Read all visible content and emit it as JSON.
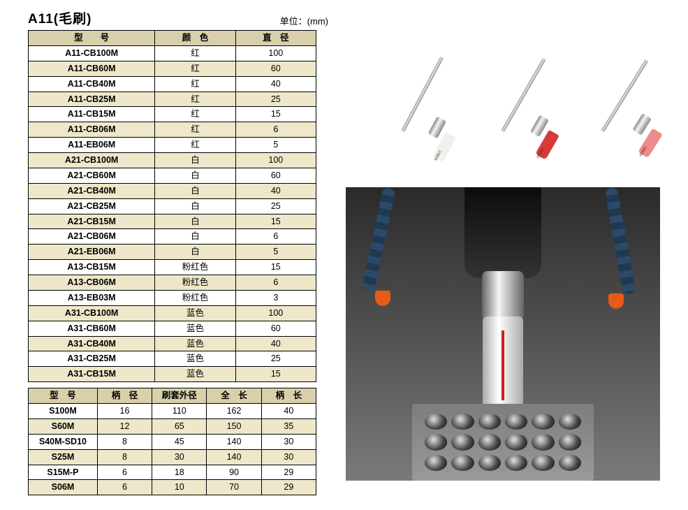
{
  "title": "A11(毛刷)",
  "unit_label": "单位：(mm)",
  "table1": {
    "headers": [
      "型　　号",
      "颜　色",
      "直　径"
    ],
    "col_widths": [
      "44%",
      "28%",
      "28%"
    ],
    "rows": [
      [
        "A11-CB100M",
        "红",
        "100"
      ],
      [
        "A11-CB60M",
        "红",
        "60"
      ],
      [
        "A11-CB40M",
        "红",
        "40"
      ],
      [
        "A11-CB25M",
        "红",
        "25"
      ],
      [
        "A11-CB15M",
        "红",
        "15"
      ],
      [
        "A11-CB06M",
        "红",
        "6"
      ],
      [
        "A11-EB06M",
        "红",
        "5"
      ],
      [
        "A21-CB100M",
        "白",
        "100"
      ],
      [
        "A21-CB60M",
        "白",
        "60"
      ],
      [
        "A21-CB40M",
        "白",
        "40"
      ],
      [
        "A21-CB25M",
        "白",
        "25"
      ],
      [
        "A21-CB15M",
        "白",
        "15"
      ],
      [
        "A21-CB06M",
        "白",
        "6"
      ],
      [
        "A21-EB06M",
        "白",
        "5"
      ],
      [
        "A13-CB15M",
        "粉红色",
        "15"
      ],
      [
        "A13-CB06M",
        "粉红色",
        "6"
      ],
      [
        "A13-EB03M",
        "粉红色",
        "3"
      ],
      [
        "A31-CB100M",
        "蓝色",
        "100"
      ],
      [
        "A31-CB60M",
        "蓝色",
        "60"
      ],
      [
        "A31-CB40M",
        "蓝色",
        "40"
      ],
      [
        "A31-CB25M",
        "蓝色",
        "25"
      ],
      [
        "A31-CB15M",
        "蓝色",
        "15"
      ]
    ]
  },
  "table2": {
    "headers": [
      "型　号",
      "柄　径",
      "刷套外径",
      "全　长",
      "柄　长"
    ],
    "col_widths": [
      "24%",
      "19%",
      "19%",
      "19%",
      "19%"
    ],
    "rows": [
      [
        "S100M",
        "16",
        "110",
        "162",
        "40"
      ],
      [
        "S60M",
        "12",
        "65",
        "150",
        "35"
      ],
      [
        "S40M-SD10",
        "8",
        "45",
        "140",
        "30"
      ],
      [
        "S25M",
        "8",
        "30",
        "140",
        "30"
      ],
      [
        "S15M-P",
        "6",
        "18",
        "90",
        "29"
      ],
      [
        "S06M",
        "6",
        "10",
        "70",
        "29"
      ]
    ]
  },
  "brushes": [
    {
      "tip_color": "#f2f0ea",
      "angle": 28,
      "brand": "XEBEC"
    },
    {
      "tip_color": "#d63a3a",
      "angle": 30,
      "brand": "XEBEC"
    },
    {
      "tip_color": "#ef8b8b",
      "angle": 32,
      "brand": "XEBEC"
    }
  ],
  "colors": {
    "header_bg": "#d8cfab",
    "row_alt_bg": "#eee7c9",
    "border": "#000000"
  }
}
